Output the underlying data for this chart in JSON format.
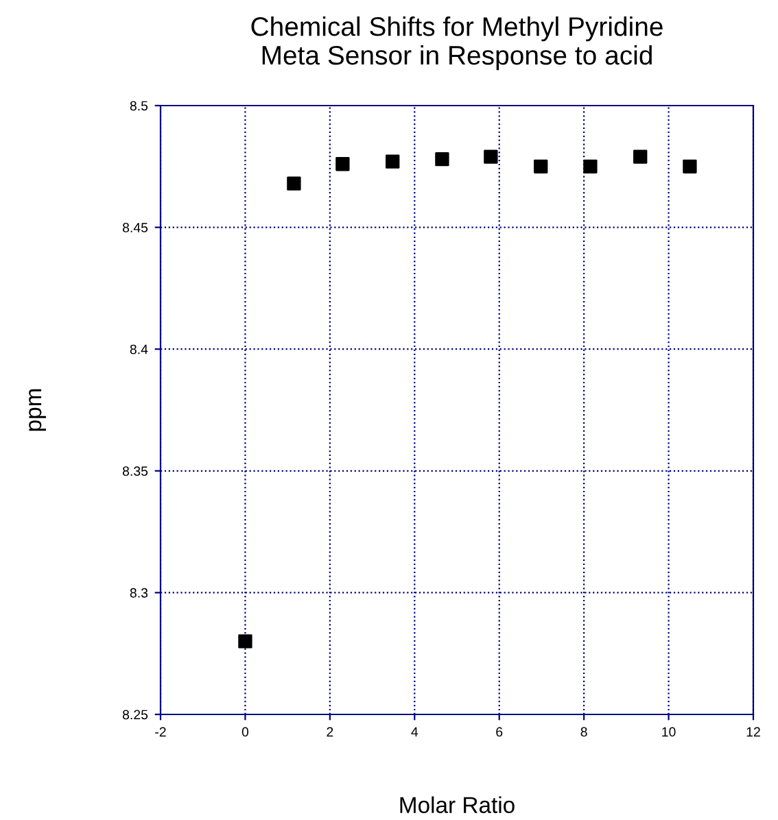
{
  "chart_data": {
    "type": "scatter",
    "title": "Chemical Shifts for Methyl Pyridine\nMeta Sensor in Response to acid",
    "xlabel": "Molar Ratio",
    "ylabel": "ppm",
    "x": [
      0,
      1.15,
      2.3,
      3.48,
      4.65,
      5.8,
      6.98,
      8.15,
      9.33,
      10.5
    ],
    "series": [
      {
        "color": "#000000",
        "values": [
          8.28,
          8.468,
          8.476,
          8.477,
          8.478,
          8.479,
          8.475,
          8.475,
          8.479,
          8.475
        ]
      }
    ],
    "xlim": [
      -2,
      12
    ],
    "xticks": [
      -2,
      0,
      2,
      4,
      6,
      8,
      10,
      12
    ],
    "ylim": [
      8.25,
      8.5
    ],
    "yticks": [
      8.25,
      8.3,
      8.35,
      8.4,
      8.45,
      8.5
    ],
    "grid": true,
    "marker": "square"
  }
}
